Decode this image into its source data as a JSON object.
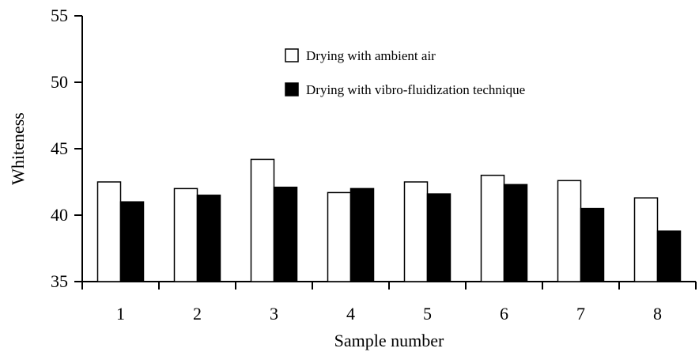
{
  "chart_data": {
    "type": "bar",
    "title": "",
    "xlabel": "Sample number",
    "ylabel": "Whiteness",
    "categories": [
      "1",
      "2",
      "3",
      "4",
      "5",
      "6",
      "7",
      "8"
    ],
    "ylim": [
      35,
      55
    ],
    "yticks": [
      "35",
      "40",
      "45",
      "50",
      "55"
    ],
    "grid": false,
    "legend_position": "top-center",
    "series": [
      {
        "name": "Drying with ambient air",
        "color": "#ffffff",
        "values": [
          42.5,
          42.0,
          44.2,
          41.7,
          42.5,
          43.0,
          42.6,
          41.3
        ]
      },
      {
        "name": "Drying with vibro-fluidization technique",
        "color": "#000000",
        "values": [
          41.0,
          41.5,
          42.1,
          42.0,
          41.6,
          42.3,
          40.5,
          38.8
        ]
      }
    ]
  }
}
